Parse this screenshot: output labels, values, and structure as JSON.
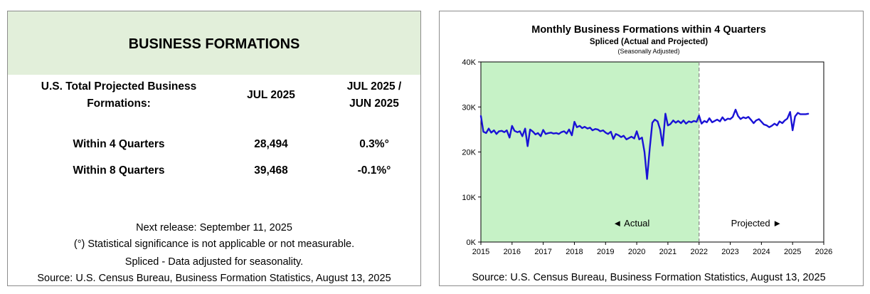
{
  "table": {
    "title": "BUSINESS FORMATIONS",
    "headers": {
      "label": "U.S. Total Projected Business Formations:",
      "label_line1": "U.S. Total Projected Business",
      "label_line2": "Formations:",
      "period": "JUL 2025",
      "change_line1": "JUL 2025 /",
      "change_line2": "JUN 2025"
    },
    "rows": [
      {
        "label": "Within 4 Quarters",
        "value": "28,494",
        "change": "0.3%°"
      },
      {
        "label": "Within 8 Quarters",
        "value": "39,468",
        "change": "-0.1%°"
      }
    ],
    "footnotes": {
      "release": "Next release: September 11, 2025",
      "significance": "(°) Statistical significance is not applicable or not measurable.",
      "spliced": "Spliced - Data adjusted for seasonality.",
      "source": "Source: U.S. Census Bureau, Business Formation Statistics, August 13, 2025"
    }
  },
  "chart_data": {
    "type": "line",
    "title": "Monthly Business Formations within 4 Quarters",
    "subtitle": "Spliced (Actual and Projected)",
    "subsubtitle": "(Seasonally Adjusted)",
    "source": "Source: U.S. Census Bureau, Business Formation Statistics, August 13, 2025",
    "xlabel": "",
    "ylabel": "",
    "xlim": [
      2015,
      2026
    ],
    "ylim": [
      0,
      40000
    ],
    "x_ticks": [
      2015,
      2016,
      2017,
      2018,
      2019,
      2020,
      2021,
      2022,
      2023,
      2024,
      2025,
      2026
    ],
    "x_tick_labels": [
      "2015",
      "2016",
      "2017",
      "2018",
      "2019",
      "2020",
      "2021",
      "2022",
      "2023",
      "2024",
      "2025",
      "2026"
    ],
    "y_ticks": [
      0,
      10000,
      20000,
      30000,
      40000
    ],
    "y_tick_labels": [
      "0K",
      "10K",
      "20K",
      "30K",
      "40K"
    ],
    "actual_region": {
      "start": 2015,
      "end": 2022,
      "label": "◄ Actual",
      "color": "#c6f2c6"
    },
    "projected_region": {
      "start": 2022,
      "end": 2026,
      "label": "Projected ►"
    },
    "line_color": "#1a12d6",
    "series": [
      {
        "name": "Business formations within 4 quarters",
        "x": [
          2015.0,
          2015.08,
          2015.17,
          2015.25,
          2015.33,
          2015.42,
          2015.5,
          2015.58,
          2015.67,
          2015.75,
          2015.83,
          2015.92,
          2016.0,
          2016.08,
          2016.17,
          2016.25,
          2016.33,
          2016.42,
          2016.5,
          2016.58,
          2016.67,
          2016.75,
          2016.83,
          2016.92,
          2017.0,
          2017.08,
          2017.17,
          2017.25,
          2017.33,
          2017.42,
          2017.5,
          2017.58,
          2017.67,
          2017.75,
          2017.83,
          2017.92,
          2018.0,
          2018.08,
          2018.17,
          2018.25,
          2018.33,
          2018.42,
          2018.5,
          2018.58,
          2018.67,
          2018.75,
          2018.83,
          2018.92,
          2019.0,
          2019.08,
          2019.17,
          2019.25,
          2019.33,
          2019.42,
          2019.5,
          2019.58,
          2019.67,
          2019.75,
          2019.83,
          2019.92,
          2020.0,
          2020.08,
          2020.17,
          2020.25,
          2020.33,
          2020.42,
          2020.5,
          2020.58,
          2020.67,
          2020.75,
          2020.83,
          2020.92,
          2021.0,
          2021.08,
          2021.17,
          2021.25,
          2021.33,
          2021.42,
          2021.5,
          2021.58,
          2021.67,
          2021.75,
          2021.83,
          2021.92,
          2022.0,
          2022.08,
          2022.17,
          2022.25,
          2022.33,
          2022.42,
          2022.5,
          2022.58,
          2022.67,
          2022.75,
          2022.83,
          2022.92,
          2023.0,
          2023.08,
          2023.17,
          2023.25,
          2023.33,
          2023.42,
          2023.5,
          2023.58,
          2023.67,
          2023.75,
          2023.83,
          2023.92,
          2024.0,
          2024.08,
          2024.17,
          2024.25,
          2024.33,
          2024.42,
          2024.5,
          2024.58,
          2024.67,
          2024.75,
          2024.83,
          2024.92,
          2025.0,
          2025.08,
          2025.17,
          2025.25,
          2025.33,
          2025.42,
          2025.5
        ],
        "y": [
          28000,
          24500,
          24200,
          25200,
          24300,
          24800,
          24000,
          24600,
          24700,
          24400,
          24800,
          23200,
          25800,
          24700,
          24400,
          24600,
          23500,
          25200,
          21300,
          25000,
          24500,
          23900,
          24200,
          23500,
          24900,
          24000,
          24200,
          24300,
          24100,
          24200,
          24000,
          24400,
          24600,
          24100,
          25000,
          23700,
          26700,
          25500,
          25800,
          25300,
          25600,
          25200,
          25400,
          24800,
          25100,
          25000,
          24600,
          24800,
          24300,
          24000,
          24500,
          22900,
          24000,
          23700,
          23300,
          23600,
          22800,
          23100,
          23400,
          23000,
          24600,
          22800,
          23200,
          20000,
          14000,
          21000,
          26500,
          27200,
          26800,
          25000,
          21400,
          28500,
          25900,
          26200,
          27000,
          26500,
          26900,
          26400,
          27000,
          26300,
          26800,
          26600,
          26900,
          26700,
          28100,
          26300,
          26900,
          26600,
          27500,
          26600,
          26900,
          27200,
          26800,
          27700,
          27000,
          27400,
          27300,
          27800,
          29400,
          28000,
          27300,
          27700,
          27500,
          27800,
          27100,
          26400,
          27000,
          27300,
          26700,
          26100,
          25900,
          25500,
          25800,
          26300,
          25900,
          26800,
          26400,
          27000,
          27400,
          28900,
          24800,
          27900,
          28700,
          28400,
          28400,
          28400,
          28494
        ]
      }
    ]
  }
}
